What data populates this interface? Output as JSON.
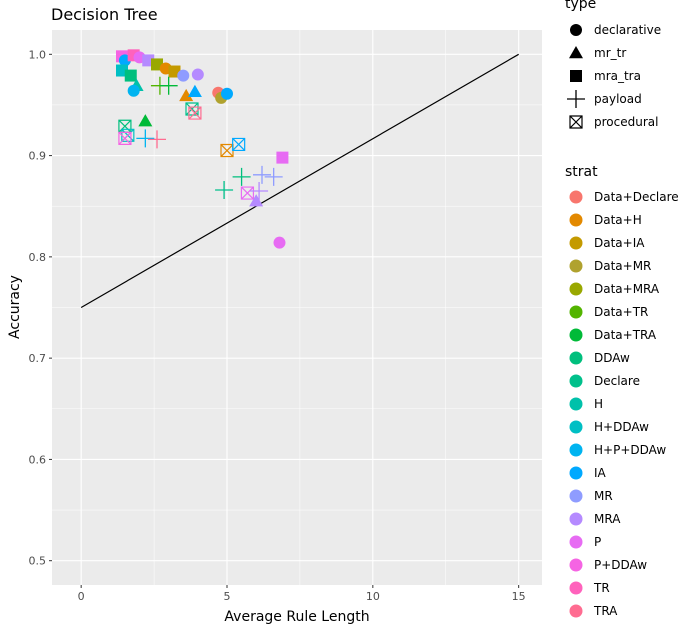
{
  "chart_data": {
    "type": "scatter",
    "title": "Decision Tree",
    "xlabel": "Average Rule Length",
    "ylabel": "Accuracy",
    "xlim": [
      -1.0,
      15.8
    ],
    "ylim": [
      0.476,
      1.024
    ],
    "xticks": [
      0,
      5,
      10,
      15
    ],
    "yticks": [
      0.5,
      0.6,
      0.7,
      0.8,
      0.9,
      1.0
    ],
    "xtick_labels": [
      "0",
      "5",
      "10",
      "15"
    ],
    "ytick_labels": [
      "0.5",
      "0.6",
      "0.7",
      "0.8",
      "0.9",
      "1.0"
    ],
    "grid": true,
    "reference_line": {
      "x": [
        0,
        15
      ],
      "y": [
        0.75,
        1.0
      ]
    },
    "legend_type": {
      "title": "type",
      "entries": [
        {
          "label": "declarative",
          "shape": "circle"
        },
        {
          "label": "mr_tr",
          "shape": "triangle"
        },
        {
          "label": "mra_tra",
          "shape": "square"
        },
        {
          "label": "payload",
          "shape": "plus"
        },
        {
          "label": "procedural",
          "shape": "boxx"
        }
      ]
    },
    "legend_strat": {
      "title": "strat",
      "entries": [
        {
          "label": "Data+Declare",
          "color": "#F8766D"
        },
        {
          "label": "Data+H",
          "color": "#E38900"
        },
        {
          "label": "Data+IA",
          "color": "#C49A00"
        },
        {
          "label": "Data+MR",
          "color": "#B0A22E"
        },
        {
          "label": "Data+MRA",
          "color": "#99A800"
        },
        {
          "label": "Data+TR",
          "color": "#53B400"
        },
        {
          "label": "Data+TRA",
          "color": "#00BA38"
        },
        {
          "label": "DDAw",
          "color": "#00BF7D"
        },
        {
          "label": "Declare",
          "color": "#00C08B"
        },
        {
          "label": "H",
          "color": "#00C1AA"
        },
        {
          "label": "H+DDAw",
          "color": "#00BFC4"
        },
        {
          "label": "H+P+DDAw",
          "color": "#00B4F0"
        },
        {
          "label": "IA",
          "color": "#00A9FF"
        },
        {
          "label": "MR",
          "color": "#8F9CFF"
        },
        {
          "label": "MRA",
          "color": "#B58AFF"
        },
        {
          "label": "P",
          "color": "#E76BF3"
        },
        {
          "label": "P+DDAw",
          "color": "#F564E3"
        },
        {
          "label": "TR",
          "color": "#FF62BC"
        },
        {
          "label": "TRA",
          "color": "#FF6C91"
        }
      ]
    },
    "points": [
      {
        "x": 1.4,
        "y": 0.998,
        "strat": "P+DDAw",
        "shape": "square"
      },
      {
        "x": 1.5,
        "y": 0.994,
        "strat": "IA",
        "shape": "circle"
      },
      {
        "x": 1.8,
        "y": 0.999,
        "strat": "TR",
        "shape": "square"
      },
      {
        "x": 2.0,
        "y": 0.997,
        "strat": "P",
        "shape": "circle"
      },
      {
        "x": 2.3,
        "y": 0.994,
        "strat": "MRA",
        "shape": "square"
      },
      {
        "x": 2.6,
        "y": 0.99,
        "strat": "Data+MRA",
        "shape": "square"
      },
      {
        "x": 2.9,
        "y": 0.986,
        "strat": "Data+H",
        "shape": "circle"
      },
      {
        "x": 3.2,
        "y": 0.983,
        "strat": "Data+IA",
        "shape": "square"
      },
      {
        "x": 3.5,
        "y": 0.979,
        "strat": "MR",
        "shape": "circle"
      },
      {
        "x": 1.4,
        "y": 0.984,
        "strat": "H+DDAw",
        "shape": "square"
      },
      {
        "x": 1.7,
        "y": 0.979,
        "strat": "DDAw",
        "shape": "square"
      },
      {
        "x": 1.9,
        "y": 0.969,
        "strat": "H",
        "shape": "triangle"
      },
      {
        "x": 1.8,
        "y": 0.964,
        "strat": "H+P+DDAw",
        "shape": "circle"
      },
      {
        "x": 2.7,
        "y": 0.969,
        "strat": "Data+TR",
        "shape": "plus"
      },
      {
        "x": 3.0,
        "y": 0.969,
        "strat": "Data+TRA",
        "shape": "plus"
      },
      {
        "x": 3.6,
        "y": 0.959,
        "strat": "Data+H",
        "shape": "triangle"
      },
      {
        "x": 3.9,
        "y": 0.963,
        "strat": "IA",
        "shape": "triangle"
      },
      {
        "x": 4.0,
        "y": 0.98,
        "strat": "MRA",
        "shape": "circle"
      },
      {
        "x": 4.7,
        "y": 0.962,
        "strat": "Data+Declare",
        "shape": "circle"
      },
      {
        "x": 4.8,
        "y": 0.957,
        "strat": "Data+MR",
        "shape": "circle"
      },
      {
        "x": 5.0,
        "y": 0.961,
        "strat": "IA",
        "shape": "circle"
      },
      {
        "x": 3.8,
        "y": 0.946,
        "strat": "Declare",
        "shape": "boxx"
      },
      {
        "x": 3.9,
        "y": 0.942,
        "strat": "TRA",
        "shape": "boxx"
      },
      {
        "x": 2.2,
        "y": 0.934,
        "strat": "Data+TRA",
        "shape": "triangle"
      },
      {
        "x": 1.5,
        "y": 0.929,
        "strat": "DDAw",
        "shape": "boxx"
      },
      {
        "x": 1.6,
        "y": 0.92,
        "strat": "H+DDAw",
        "shape": "boxx"
      },
      {
        "x": 1.5,
        "y": 0.917,
        "strat": "P+DDAw",
        "shape": "boxx"
      },
      {
        "x": 2.2,
        "y": 0.917,
        "strat": "H+P+DDAw",
        "shape": "plus"
      },
      {
        "x": 2.6,
        "y": 0.916,
        "strat": "TRA",
        "shape": "plus"
      },
      {
        "x": 5.0,
        "y": 0.905,
        "strat": "Data+H",
        "shape": "boxx"
      },
      {
        "x": 5.4,
        "y": 0.911,
        "strat": "IA",
        "shape": "boxx"
      },
      {
        "x": 6.9,
        "y": 0.898,
        "strat": "P",
        "shape": "square"
      },
      {
        "x": 5.5,
        "y": 0.879,
        "strat": "DDAw",
        "shape": "plus"
      },
      {
        "x": 6.2,
        "y": 0.881,
        "strat": "MR",
        "shape": "plus"
      },
      {
        "x": 6.6,
        "y": 0.879,
        "strat": "MR",
        "shape": "plus"
      },
      {
        "x": 4.9,
        "y": 0.866,
        "strat": "Declare",
        "shape": "plus"
      },
      {
        "x": 5.7,
        "y": 0.863,
        "strat": "P",
        "shape": "boxx"
      },
      {
        "x": 6.1,
        "y": 0.865,
        "strat": "MRA",
        "shape": "plus"
      },
      {
        "x": 6.0,
        "y": 0.855,
        "strat": "MRA",
        "shape": "triangle"
      },
      {
        "x": 6.8,
        "y": 0.814,
        "strat": "P",
        "shape": "circle"
      }
    ]
  }
}
